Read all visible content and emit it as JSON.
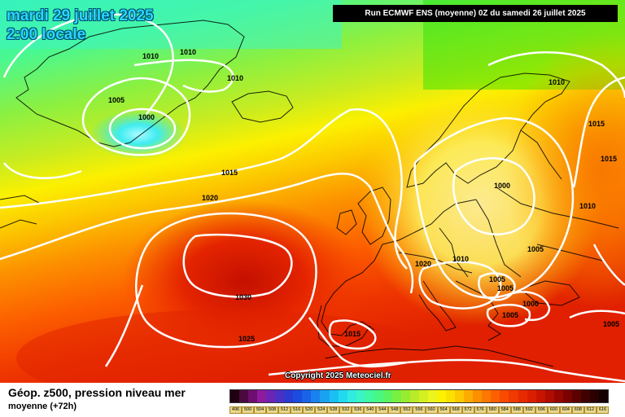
{
  "header": {
    "date": "mardi 29 juillet 2025",
    "time": "2:00 locale",
    "run": "Run ECMWF ENS (moyenne) 0Z du samedi 26 juillet 2025"
  },
  "copyright": "Copyright 2025 Meteociel.fr",
  "footer": {
    "title": "Géop. z500, pression niveau mer",
    "subtitle": "moyenne   (+72h)"
  },
  "map": {
    "pressure_labels": [
      {
        "text": "1010"
      },
      {
        "text": "1010"
      },
      {
        "text": "1010"
      },
      {
        "text": "1005"
      },
      {
        "text": "1000"
      },
      {
        "text": "1010"
      },
      {
        "text": "1015"
      },
      {
        "text": "1015"
      },
      {
        "text": "1000"
      },
      {
        "text": "1010"
      },
      {
        "text": "1015"
      },
      {
        "text": "1020"
      },
      {
        "text": "1030"
      },
      {
        "text": "1025"
      },
      {
        "text": "1020"
      },
      {
        "text": "1010"
      },
      {
        "text": "1005"
      },
      {
        "text": "1005"
      },
      {
        "text": "1005"
      },
      {
        "text": "1000"
      },
      {
        "text": "1005"
      },
      {
        "text": "1005"
      },
      {
        "text": "1015"
      }
    ]
  },
  "legend": {
    "colors": [
      "#200010",
      "#4a0a40",
      "#6e0e70",
      "#8e1aa0",
      "#6c24b4",
      "#4a30c4",
      "#2a3ad2",
      "#1a4ce0",
      "#1a62e8",
      "#1a82ee",
      "#1aa2f2",
      "#1ac0f4",
      "#22daf0",
      "#30ece0",
      "#3af4c4",
      "#40f8a0",
      "#48f880",
      "#5af460",
      "#78f040",
      "#98ec30",
      "#b8ec28",
      "#d4f020",
      "#ecf420",
      "#fcf200",
      "#fce000",
      "#fcc800",
      "#fcac00",
      "#fc9000",
      "#fc7800",
      "#fc6000",
      "#f84a00",
      "#f03a00",
      "#e82a00",
      "#dc1e00",
      "#c81400",
      "#b00c00",
      "#960600",
      "#7a0200",
      "#5c0000",
      "#400000",
      "#2a0000",
      "#140000"
    ],
    "ticks": [
      "496",
      "500",
      "504",
      "508",
      "512",
      "516",
      "520",
      "524",
      "528",
      "532",
      "536",
      "540",
      "544",
      "548",
      "552",
      "556",
      "560",
      "564",
      "568",
      "572",
      "576",
      "580",
      "584",
      "588",
      "592",
      "596",
      "600",
      "604",
      "608",
      "612",
      "616"
    ]
  }
}
